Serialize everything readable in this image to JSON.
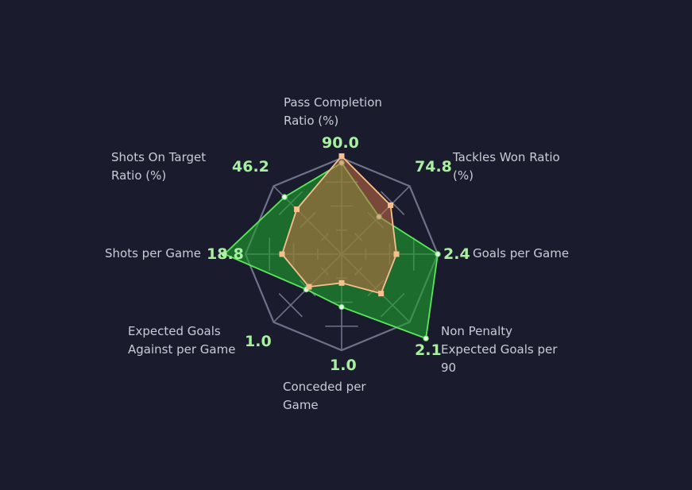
{
  "chart_data": {
    "type": "radar",
    "title": "",
    "axes": [
      {
        "label": "Pass Completion Ratio (%)",
        "label_lines": [
          "Pass Completion",
          "Ratio (%)"
        ],
        "value_label": "90.0"
      },
      {
        "label": "Tackles Won Ratio (%)",
        "label_lines": [
          "Tackles Won Ratio",
          "(%)"
        ],
        "value_label": "74.8"
      },
      {
        "label": "Goals per Game",
        "label_lines": [
          "Goals per Game"
        ],
        "value_label": "2.4"
      },
      {
        "label": "Non Penalty Expected Goals per 90",
        "label_lines": [
          "Non Penalty",
          "Expected Goals per",
          "90"
        ],
        "value_label": "2.1"
      },
      {
        "label": "Conceded per Game",
        "label_lines": [
          "Conceded per",
          "Game"
        ],
        "value_label": "1.0"
      },
      {
        "label": "Expected Goals Against per Game",
        "label_lines": [
          "Expected Goals",
          "Against per Game"
        ],
        "value_label": "1.0"
      },
      {
        "label": "Shots per Game",
        "label_lines": [
          "Shots per Game"
        ],
        "value_label": "18.8"
      },
      {
        "label": "Shots On Target Ratio (%)",
        "label_lines": [
          "Shots On Target",
          "Ratio (%)"
        ],
        "value_label": "46.2"
      }
    ],
    "series": [
      {
        "values_fraction": [
          0.95,
          0.55,
          1.0,
          1.24,
          0.55,
          0.52,
          1.22,
          0.84
        ],
        "color": "#5be55b",
        "fill": "rgba(30,160,45,0.62)"
      },
      {
        "values_fraction": [
          1.02,
          0.72,
          0.57,
          0.58,
          0.3,
          0.48,
          0.62,
          0.66
        ],
        "color": "#f7c08e",
        "fill": "rgba(200,110,70,0.55)"
      }
    ],
    "grid_levels": 4,
    "colors": {
      "background": "#1a1c2e",
      "grid": "#6e7188",
      "value_text": "#a8f0a0",
      "label_text": "#c9cbd6"
    }
  }
}
